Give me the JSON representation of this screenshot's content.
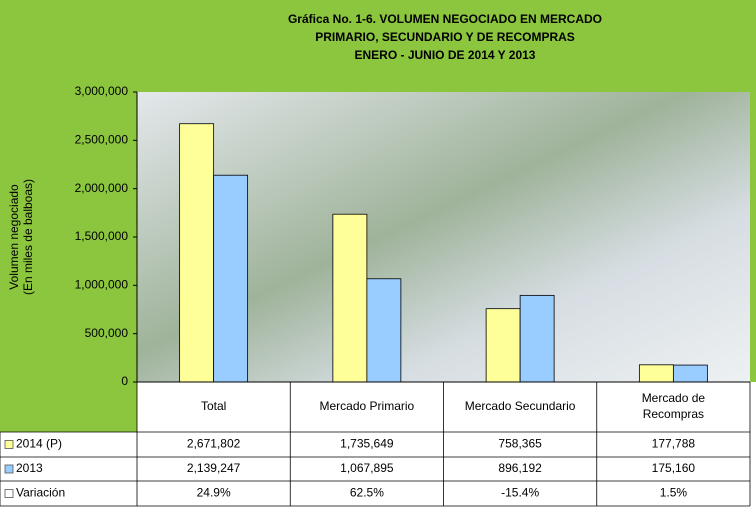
{
  "chart_data": {
    "type": "bar",
    "title": [
      "Gráfica No. 1-6.  VOLUMEN NEGOCIADO EN  MERCADO",
      "PRIMARIO, SECUNDARIO Y DE RECOMPRAS",
      "ENERO - JUNIO DE 2014 Y 2013"
    ],
    "ylabel": [
      "Volumen negociado",
      "(En miles de balboas)"
    ],
    "categories": [
      "Total",
      "Mercado Primario",
      "Mercado Secundario",
      [
        "Mercado de",
        "Recompras"
      ]
    ],
    "series": [
      {
        "name": "2014 (P)",
        "color": "#ffff99",
        "values": [
          2671802,
          1735649,
          758365,
          177788
        ],
        "value_labels": [
          "2,671,802",
          "1,735,649",
          "758,365",
          "177,788"
        ]
      },
      {
        "name": "2013",
        "color": "#99ccff",
        "values": [
          2139247,
          1067895,
          896192,
          175160
        ],
        "value_labels": [
          "2,139,247",
          "1,067,895",
          "896,192",
          "175,160"
        ]
      }
    ],
    "variation": {
      "name": "Variación",
      "color": "#ffffff",
      "values": [
        24.9,
        62.5,
        -15.4,
        1.5
      ],
      "value_labels": [
        "24.9%",
        "62.5%",
        "-15.4%",
        "1.5%"
      ]
    },
    "ylim": [
      0,
      3000000
    ],
    "yticks": [
      0,
      {
        "value": 500000,
        "label": "500,000"
      },
      {
        "value": 1000000,
        "label": "1,000,000"
      },
      {
        "value": 1500000,
        "label": "1,500,000"
      },
      {
        "value": 2000000,
        "label": "2,000,000"
      },
      {
        "value": 2500000,
        "label": "2,500,000"
      },
      {
        "value": 3000000,
        "label": "3,000,000"
      }
    ]
  }
}
